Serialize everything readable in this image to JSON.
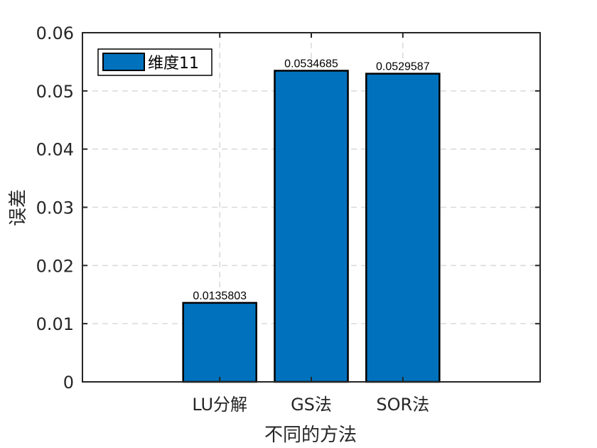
{
  "chart_data": {
    "type": "bar",
    "categories": [
      "LU分解",
      "GS法",
      "SOR法"
    ],
    "series": [
      {
        "name": "维度11",
        "values": [
          0.0135803,
          0.0534685,
          0.0529587
        ]
      }
    ],
    "data_labels": [
      "0.0135803",
      "0.0534685",
      "0.0529587"
    ],
    "xlabel": "不同的方法",
    "ylabel": "误差",
    "ylim": [
      0,
      0.06
    ],
    "yticks": [
      0,
      0.01,
      0.02,
      0.03,
      0.04,
      0.05,
      0.06
    ],
    "ytick_labels": [
      "0",
      "0.01",
      "0.02",
      "0.03",
      "0.04",
      "0.05",
      "0.06"
    ],
    "grid": true,
    "legend_position": "top-left",
    "bar_color": "#0072BD"
  }
}
